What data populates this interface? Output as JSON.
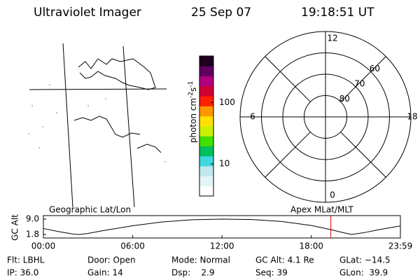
{
  "header": {
    "title": "Ultraviolet Imager",
    "date": "25 Sep 07",
    "time": "19:18:51 UT"
  },
  "map": {
    "label": "Geographic Lat/Lon"
  },
  "colorbar": {
    "label": {
      "base": "photon cm",
      "exp1": "-2",
      "mid": "s",
      "exp2": "-1"
    },
    "scale": "log",
    "lim": [
      3,
      575
    ],
    "ticks": [
      10,
      100
    ],
    "colors": [
      "#ffffff",
      "#e4f4f4",
      "#bfe8ec",
      "#40d8e0",
      "#00c060",
      "#40e000",
      "#c8f000",
      "#ffe000",
      "#ff9800",
      "#ff2000",
      "#d00030",
      "#b00080",
      "#600060",
      "#200020"
    ]
  },
  "polar": {
    "label": "Apex MLat/MLT",
    "rlim": [
      90,
      50
    ],
    "rings": [
      {
        "value": 80,
        "label": "80"
      },
      {
        "value": 70,
        "label": "70"
      },
      {
        "value": 60,
        "label": "60"
      }
    ],
    "hours": [
      {
        "value": 12,
        "label": "12"
      },
      {
        "value": 18,
        "label": "18"
      },
      {
        "value": 6,
        "label": "6"
      },
      {
        "value": 0,
        "label": "0"
      }
    ]
  },
  "chart_data": {
    "type": "line",
    "ylabel": "GC Alt",
    "x": [
      0,
      1,
      2,
      2.4,
      3,
      4,
      6,
      8,
      10,
      12,
      14,
      16,
      18,
      19.3,
      20,
      20.7,
      21.5,
      22.5,
      23.98
    ],
    "series": [
      {
        "color": "#000000",
        "values": [
          4.6,
          3.2,
          2.0,
          1.8,
          2.3,
          3.6,
          5.9,
          7.7,
          8.7,
          9.0,
          8.8,
          7.9,
          6.0,
          4.1,
          2.9,
          1.8,
          2.6,
          4.0,
          5.8
        ]
      }
    ],
    "marker_x": 19.31,
    "marker_color": "#e00000",
    "xlim": [
      0,
      23.983
    ],
    "xticks": [
      {
        "value": 0,
        "label": "00:00"
      },
      {
        "value": 6,
        "label": "06:00"
      },
      {
        "value": 12,
        "label": "12:00"
      },
      {
        "value": 18,
        "label": "18:00"
      },
      {
        "value": 23.983,
        "label": "23:59"
      }
    ],
    "ylim": [
      1.8,
      9.0
    ],
    "yticks": [
      {
        "value": 9.0,
        "label": "9.0"
      },
      {
        "value": 1.8,
        "label": "1.8"
      }
    ]
  },
  "footer": {
    "rows": [
      [
        "Flt: LBHL",
        "Door: Open",
        "Mode: Normal",
        "GC Alt: 4.1 Re",
        "GLat: −14.5"
      ],
      [
        "IP: 36.0",
        "Gain: 14",
        "Dsp:    2.9",
        "Seq: 39",
        "GLon:  39.9"
      ]
    ]
  }
}
